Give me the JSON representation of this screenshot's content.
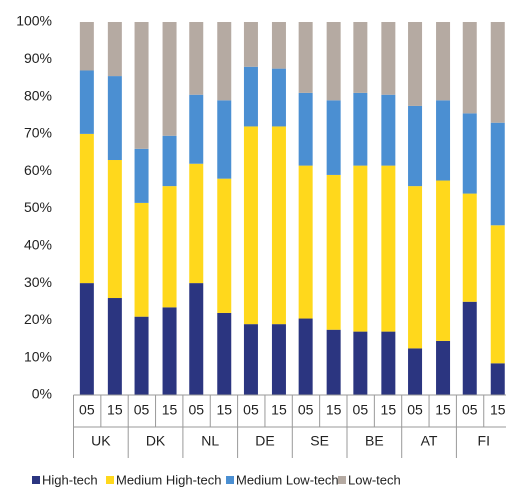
{
  "chart_data": {
    "type": "stacked-bar",
    "categories": [
      "05",
      "15",
      "05",
      "15",
      "05",
      "15",
      "05",
      "15",
      "05",
      "15",
      "05",
      "15",
      "05",
      "15",
      "05",
      "15"
    ],
    "groups": [
      "UK",
      "DK",
      "NL",
      "DE",
      "SE",
      "BE",
      "AT",
      "FI"
    ],
    "series": [
      {
        "name": "High-tech",
        "color": "#2b3580",
        "values": [
          30,
          26,
          21,
          23.5,
          30,
          22,
          19,
          19,
          20.5,
          17.5,
          17,
          17,
          12.5,
          14.5,
          25,
          8.5
        ]
      },
      {
        "name": "Medium High-tech",
        "color": "#ffd81c",
        "values": [
          40,
          37,
          30.5,
          32.5,
          32,
          36,
          53,
          53,
          41,
          41.5,
          44.5,
          44.5,
          43.5,
          43,
          29,
          37
        ]
      },
      {
        "name": "Medium Low-tech",
        "color": "#4b8fd2",
        "values": [
          17,
          22.5,
          14.5,
          13.5,
          18.5,
          21,
          16,
          15.5,
          19.5,
          20,
          19.5,
          19,
          21.5,
          21.5,
          21.5,
          27.5
        ]
      },
      {
        "name": "Low-tech",
        "color": "#b5aaa2",
        "values": [
          13,
          14.5,
          34,
          30.5,
          19.5,
          21,
          12,
          12.5,
          19,
          21,
          19,
          19.5,
          22.5,
          21,
          24.5,
          27
        ]
      }
    ],
    "ylim": [
      0,
      100
    ],
    "yticks": [
      {
        "value": 0,
        "label": "0%"
      },
      {
        "value": 10,
        "label": "10%"
      },
      {
        "value": 20,
        "label": "20%"
      },
      {
        "value": 30,
        "label": "30%"
      },
      {
        "value": 40,
        "label": "40%"
      },
      {
        "value": 50,
        "label": "50%"
      },
      {
        "value": 60,
        "label": "60%"
      },
      {
        "value": 70,
        "label": "70%"
      },
      {
        "value": 80,
        "label": "80%"
      },
      {
        "value": 90,
        "label": "90%"
      },
      {
        "value": 100,
        "label": "100%"
      }
    ]
  }
}
